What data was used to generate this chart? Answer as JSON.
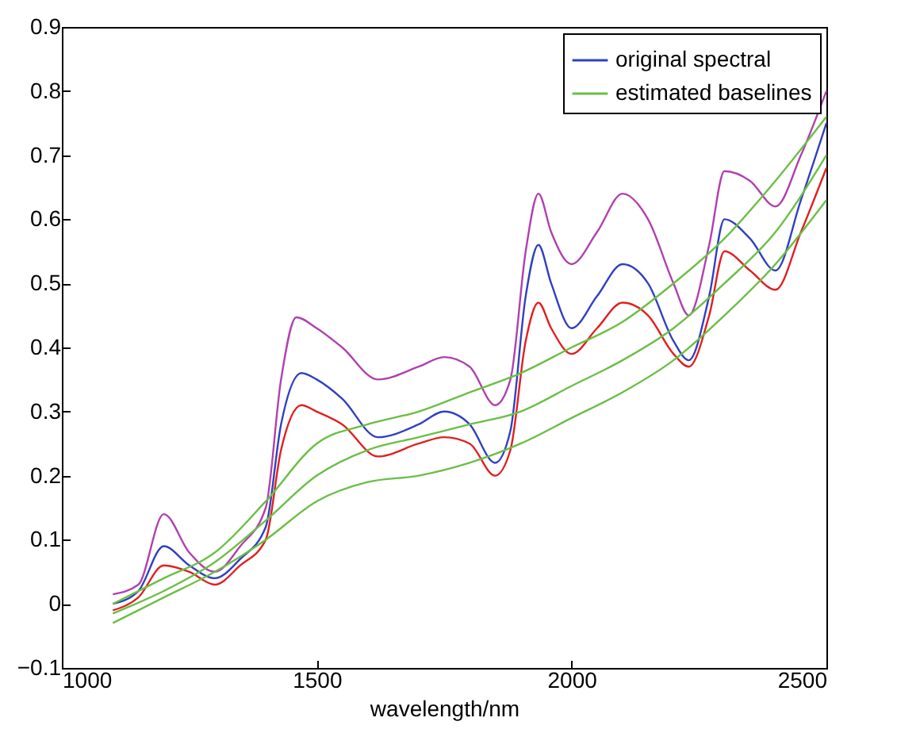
{
  "chart_data": {
    "type": "line",
    "xlabel": "wavelength/nm",
    "xlim": [
      1000,
      2500
    ],
    "xticks": [
      1000,
      1500,
      2000,
      2500
    ],
    "ylim": [
      -0.1,
      0.9
    ],
    "yticks": [
      -0.1,
      0,
      0.1,
      0.2,
      0.3,
      0.4,
      0.5,
      0.6,
      0.7,
      0.8,
      0.9
    ],
    "grid": false,
    "legend": "top right",
    "marker": "none",
    "line_style": "solid",
    "series": [
      {
        "color": "#b040b0",
        "x": [
          1100,
          1150,
          1200,
          1250,
          1300,
          1350,
          1400,
          1430,
          1460,
          1500,
          1550,
          1620,
          1700,
          1750,
          1800,
          1850,
          1880,
          1910,
          1935,
          1960,
          2000,
          2050,
          2100,
          2150,
          2200,
          2230,
          2270,
          2300,
          2350,
          2400,
          2450,
          2500
        ],
        "values": [
          0.015,
          0.03,
          0.14,
          0.08,
          0.05,
          0.09,
          0.15,
          0.35,
          0.447,
          0.43,
          0.4,
          0.35,
          0.37,
          0.385,
          0.37,
          0.31,
          0.35,
          0.55,
          0.64,
          0.58,
          0.53,
          0.58,
          0.64,
          0.6,
          0.5,
          0.45,
          0.56,
          0.675,
          0.66,
          0.62,
          0.7,
          0.8
        ]
      },
      {
        "name": "original spectral",
        "color": "#3040c0",
        "x": [
          1100,
          1150,
          1200,
          1250,
          1300,
          1350,
          1400,
          1430,
          1470,
          1500,
          1550,
          1620,
          1700,
          1750,
          1800,
          1850,
          1880,
          1910,
          1935,
          1960,
          2000,
          2050,
          2100,
          2150,
          2200,
          2230,
          2270,
          2300,
          2350,
          2400,
          2450,
          2500
        ],
        "values": [
          0.0,
          0.02,
          0.09,
          0.06,
          0.04,
          0.07,
          0.12,
          0.28,
          0.36,
          0.35,
          0.32,
          0.26,
          0.28,
          0.3,
          0.28,
          0.22,
          0.27,
          0.48,
          0.56,
          0.5,
          0.43,
          0.48,
          0.53,
          0.5,
          0.41,
          0.38,
          0.48,
          0.6,
          0.57,
          0.52,
          0.63,
          0.75
        ]
      },
      {
        "color": "#e02020",
        "x": [
          1100,
          1150,
          1200,
          1250,
          1300,
          1350,
          1400,
          1430,
          1470,
          1500,
          1550,
          1620,
          1700,
          1750,
          1800,
          1850,
          1880,
          1910,
          1935,
          1960,
          2000,
          2050,
          2100,
          2150,
          2200,
          2230,
          2270,
          2300,
          2350,
          2400,
          2450,
          2500
        ],
        "values": [
          -0.01,
          0.01,
          0.06,
          0.05,
          0.03,
          0.06,
          0.1,
          0.24,
          0.31,
          0.3,
          0.28,
          0.23,
          0.25,
          0.26,
          0.25,
          0.2,
          0.24,
          0.41,
          0.47,
          0.43,
          0.39,
          0.43,
          0.47,
          0.45,
          0.39,
          0.37,
          0.45,
          0.55,
          0.52,
          0.49,
          0.58,
          0.68
        ]
      },
      {
        "name": "estimated baselines",
        "color": "#6abf45",
        "x": [
          1100,
          1200,
          1300,
          1400,
          1500,
          1600,
          1700,
          1800,
          1900,
          2000,
          2100,
          2200,
          2300,
          2400,
          2500
        ],
        "values": [
          0.0,
          0.04,
          0.08,
          0.16,
          0.25,
          0.28,
          0.3,
          0.33,
          0.36,
          0.4,
          0.44,
          0.5,
          0.57,
          0.66,
          0.76
        ]
      },
      {
        "color": "#6abf45",
        "x": [
          1100,
          1200,
          1300,
          1400,
          1500,
          1600,
          1700,
          1800,
          1900,
          2000,
          2100,
          2200,
          2300,
          2400,
          2500
        ],
        "values": [
          -0.015,
          0.02,
          0.065,
          0.13,
          0.2,
          0.24,
          0.26,
          0.28,
          0.3,
          0.34,
          0.38,
          0.43,
          0.5,
          0.58,
          0.7
        ]
      },
      {
        "color": "#6abf45",
        "x": [
          1100,
          1200,
          1300,
          1400,
          1500,
          1600,
          1700,
          1800,
          1900,
          2000,
          2100,
          2200,
          2300,
          2400,
          2500
        ],
        "values": [
          -0.03,
          0.01,
          0.05,
          0.1,
          0.16,
          0.19,
          0.2,
          0.22,
          0.25,
          0.29,
          0.33,
          0.38,
          0.45,
          0.53,
          0.63
        ]
      }
    ]
  }
}
